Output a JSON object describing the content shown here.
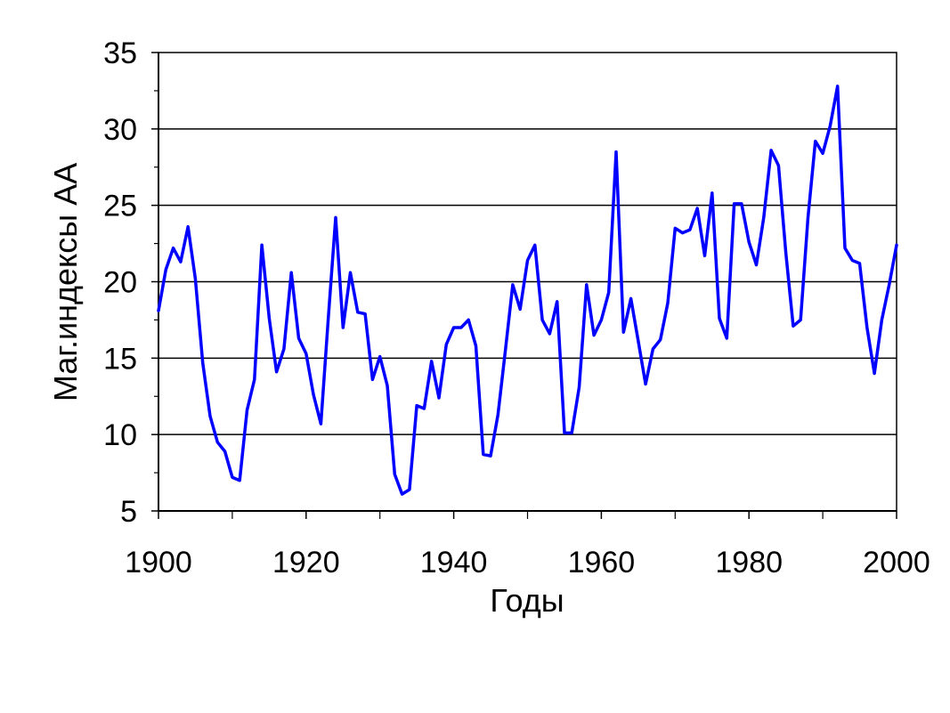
{
  "chart_data": {
    "type": "line",
    "title": "",
    "xlabel": "Годы",
    "ylabel": "Маг.индексы  АА",
    "xlim": [
      1900,
      2000
    ],
    "ylim": [
      5,
      35
    ],
    "x_ticks": [
      1900,
      1920,
      1940,
      1960,
      1980,
      2000
    ],
    "y_ticks": [
      5,
      10,
      15,
      20,
      25,
      30,
      35
    ],
    "grid": "horizontal",
    "line_color": "#0000ff",
    "series": [
      {
        "x": [
          1900,
          1901,
          1902,
          1903,
          1904,
          1905,
          1906,
          1907,
          1908,
          1909,
          1910,
          1911,
          1912,
          1913,
          1914,
          1915,
          1916,
          1917,
          1918,
          1919,
          1920,
          1921,
          1922,
          1923,
          1924,
          1925,
          1926,
          1927,
          1928,
          1929,
          1930,
          1931,
          1932,
          1933,
          1934,
          1935,
          1936,
          1937,
          1938,
          1939,
          1940,
          1941,
          1942,
          1943,
          1944,
          1945,
          1946,
          1947,
          1948,
          1949,
          1950,
          1951,
          1952,
          1953,
          1954,
          1955,
          1956,
          1957,
          1958,
          1959,
          1960,
          1961,
          1962,
          1963,
          1964,
          1965,
          1966,
          1967,
          1968,
          1969,
          1970,
          1971,
          1972,
          1973,
          1974,
          1975,
          1976,
          1977,
          1978,
          1979,
          1980,
          1981,
          1982,
          1983,
          1984,
          1985,
          1986,
          1987,
          1988,
          1989,
          1990,
          1991,
          1992,
          1993,
          1994,
          1995,
          1996,
          1997,
          1998,
          1999,
          2000
        ],
        "values": [
          18.1,
          20.8,
          22.2,
          21.3,
          23.6,
          20.2,
          14.7,
          11.2,
          9.5,
          8.9,
          7.2,
          7.0,
          11.6,
          13.6,
          22.4,
          17.6,
          14.1,
          15.6,
          20.6,
          16.3,
          15.3,
          12.6,
          10.7,
          17.6,
          24.2,
          17.0,
          20.6,
          18.0,
          17.9,
          13.6,
          15.1,
          13.2,
          7.4,
          6.1,
          6.4,
          11.9,
          11.7,
          14.8,
          12.4,
          15.9,
          17.0,
          17.0,
          17.5,
          15.8,
          8.7,
          8.6,
          11.3,
          15.5,
          19.8,
          18.2,
          21.4,
          22.4,
          17.5,
          16.6,
          18.7,
          10.1,
          10.1,
          13.1,
          19.8,
          16.5,
          17.5,
          19.3,
          28.5,
          16.7,
          18.9,
          16.1,
          13.3,
          15.6,
          16.2,
          18.6,
          23.5,
          23.2,
          23.4,
          24.8,
          21.7,
          25.8,
          17.6,
          16.3,
          25.1,
          25.1,
          22.6,
          21.1,
          24.2,
          28.6,
          27.6,
          21.9,
          17.1,
          17.5,
          24.2,
          29.2,
          28.4,
          30.2,
          32.8,
          22.2,
          21.4,
          21.2,
          17.0,
          14.0,
          17.5,
          19.8,
          22.4
        ]
      }
    ]
  }
}
